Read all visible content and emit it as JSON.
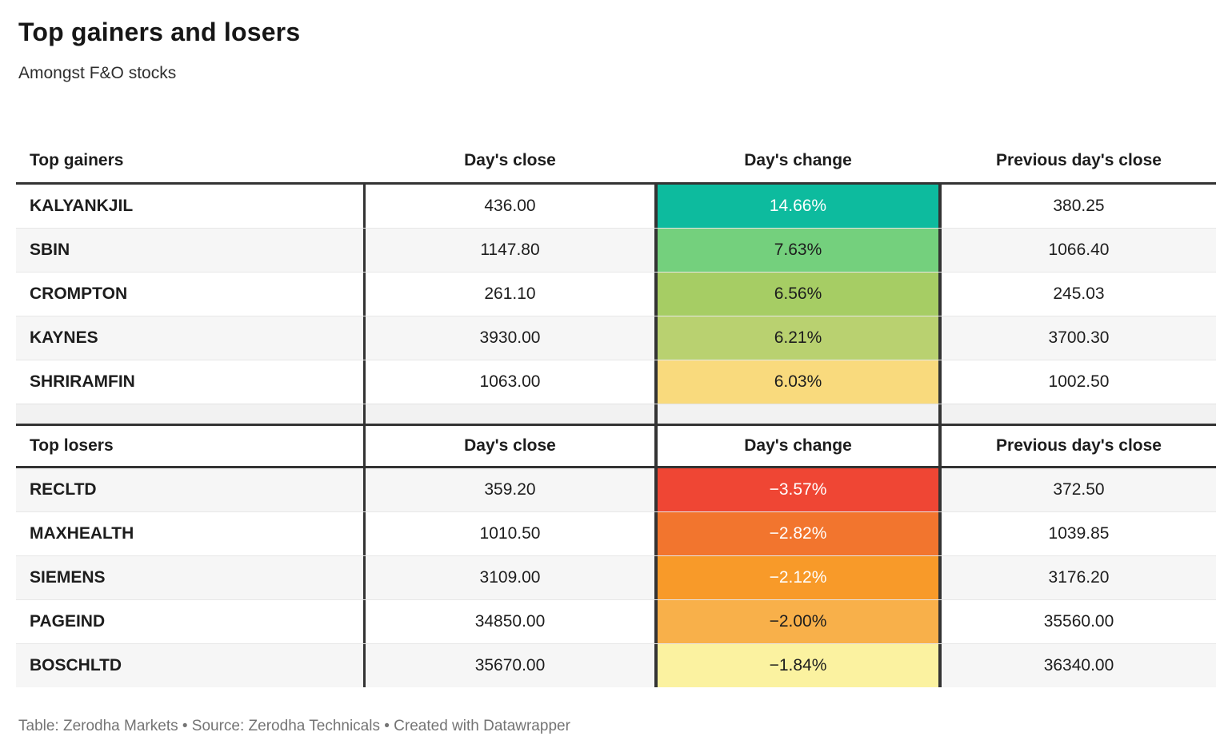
{
  "page": {
    "title": "Top gainers and losers",
    "subtitle": "Amongst F&O stocks",
    "footer": "Table: Zerodha Markets • Source: Zerodha Technicals • Created with Datawrapper"
  },
  "colors": {
    "zebra_row": "#f6f6f6",
    "strong_border": "#333333",
    "gain_max": "#0dbb9e",
    "loss_max": "#ef4634",
    "dark_text": "#1d1d1d",
    "light_text": "#ffffff"
  },
  "gainers": {
    "columns": {
      "c1": "Top gainers",
      "c2": "Day's close",
      "c3": "Day's change",
      "c4": "Previous day's close"
    },
    "rows": [
      {
        "symbol": "KALYANKJIL",
        "close": "436.00",
        "change": "14.66%",
        "prev": "380.25",
        "bg": "#0dbb9e",
        "fg": "#ffffff"
      },
      {
        "symbol": "SBIN",
        "close": "1147.80",
        "change": "7.63%",
        "prev": "1066.40",
        "bg": "#74d07d",
        "fg": "#1d1d1d"
      },
      {
        "symbol": "CROMPTON",
        "close": "261.10",
        "change": "6.56%",
        "prev": "245.03",
        "bg": "#a6cd64",
        "fg": "#1d1d1d"
      },
      {
        "symbol": "KAYNES",
        "close": "3930.00",
        "change": "6.21%",
        "prev": "3700.30",
        "bg": "#b9d170",
        "fg": "#1d1d1d"
      },
      {
        "symbol": "SHRIRAMFIN",
        "close": "1063.00",
        "change": "6.03%",
        "prev": "1002.50",
        "bg": "#f9da7d",
        "fg": "#1d1d1d"
      }
    ]
  },
  "losers": {
    "columns": {
      "c1": "Top losers",
      "c2": "Day's close",
      "c3": "Day's change",
      "c4": "Previous day's close"
    },
    "rows": [
      {
        "symbol": "RECLTD",
        "close": "359.20",
        "change": "−3.57%",
        "prev": "372.50",
        "bg": "#ef4634",
        "fg": "#ffffff"
      },
      {
        "symbol": "MAXHEALTH",
        "close": "1010.50",
        "change": "−2.82%",
        "prev": "1039.85",
        "bg": "#f2752e",
        "fg": "#ffffff"
      },
      {
        "symbol": "SIEMENS",
        "close": "3109.00",
        "change": "−2.12%",
        "prev": "3176.20",
        "bg": "#f89a29",
        "fg": "#ffffff"
      },
      {
        "symbol": "PAGEIND",
        "close": "34850.00",
        "change": "−2.00%",
        "prev": "35560.00",
        "bg": "#f8b04a",
        "fg": "#1d1d1d"
      },
      {
        "symbol": "BOSCHLTD",
        "close": "35670.00",
        "change": "−1.84%",
        "prev": "36340.00",
        "bg": "#fbf2a0",
        "fg": "#1d1d1d"
      }
    ]
  },
  "chart_data": {
    "type": "table",
    "title": "Top gainers and losers",
    "subtitle": "Amongst F&O stocks",
    "sections": [
      {
        "name": "Top gainers",
        "columns": [
          "Top gainers",
          "Day's close",
          "Day's change",
          "Previous day's close"
        ],
        "rows": [
          [
            "KALYANKJIL",
            436.0,
            14.66,
            380.25
          ],
          [
            "SBIN",
            1147.8,
            7.63,
            1066.4
          ],
          [
            "CROMPTON",
            261.1,
            6.56,
            245.03
          ],
          [
            "KAYNES",
            3930.0,
            6.21,
            3700.3
          ],
          [
            "SHRIRAMFIN",
            1063.0,
            6.03,
            1002.5
          ]
        ]
      },
      {
        "name": "Top losers",
        "columns": [
          "Top losers",
          "Day's close",
          "Day's change",
          "Previous day's close"
        ],
        "rows": [
          [
            "RECLTD",
            359.2,
            -3.57,
            372.5
          ],
          [
            "MAXHEALTH",
            1010.5,
            -2.82,
            1039.85
          ],
          [
            "SIEMENS",
            3109.0,
            -2.12,
            3176.2
          ],
          [
            "PAGEIND",
            34850.0,
            -2.0,
            35560.0
          ],
          [
            "BOSCHLTD",
            35670.0,
            -1.84,
            36340.0
          ]
        ]
      }
    ],
    "notes": "Day's change column is a diverging color scale: teal/green for gains, red/orange/yellow for losses"
  }
}
